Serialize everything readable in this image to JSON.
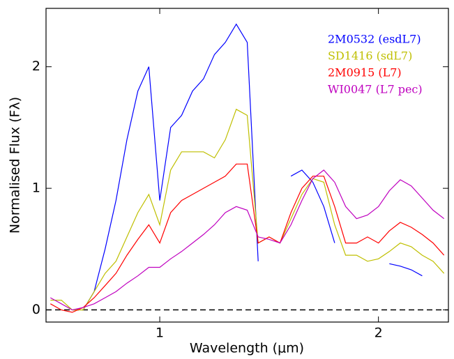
{
  "chart_data": {
    "type": "line",
    "x_label": "Wavelength (μm)",
    "y_label": "Normalised Flux (Fλ)",
    "x": [
      0.5,
      0.55,
      0.6,
      0.65,
      0.7,
      0.75,
      0.8,
      0.85,
      0.9,
      0.95,
      1.0,
      1.05,
      1.1,
      1.15,
      1.2,
      1.25,
      1.3,
      1.35,
      1.4,
      1.45,
      1.5,
      1.55,
      1.6,
      1.65,
      1.7,
      1.75,
      1.8,
      1.85,
      1.9,
      1.95,
      2.0,
      2.05,
      2.1,
      2.15,
      2.2,
      2.25,
      2.3
    ],
    "series": [
      {
        "name": "2M0532 (esdL7)",
        "color": "#0000ff",
        "values": [
          null,
          null,
          null,
          0.0,
          0.15,
          0.5,
          0.9,
          1.4,
          1.8,
          2.0,
          0.9,
          1.5,
          1.6,
          1.8,
          1.9,
          2.1,
          2.2,
          2.35,
          2.2,
          0.4,
          null,
          null,
          1.1,
          1.15,
          1.05,
          0.85,
          0.55,
          null,
          null,
          null,
          null,
          0.38,
          0.36,
          0.33,
          0.28,
          null,
          null
        ]
      },
      {
        "name": "SD1416 (sdL7)",
        "color": "#bfbf00",
        "values": [
          0.08,
          0.08,
          0.0,
          0.0,
          0.15,
          0.3,
          0.4,
          0.6,
          0.8,
          0.95,
          0.7,
          1.15,
          1.3,
          1.3,
          1.3,
          1.25,
          1.4,
          1.65,
          1.6,
          0.55,
          0.6,
          0.55,
          0.75,
          0.95,
          1.08,
          1.05,
          0.7,
          0.45,
          0.45,
          0.4,
          0.42,
          0.48,
          0.55,
          0.52,
          0.45,
          0.4,
          0.3
        ]
      },
      {
        "name": "2M0915 (L7)",
        "color": "#ff0000",
        "values": [
          0.05,
          0.0,
          -0.02,
          0.02,
          0.1,
          0.2,
          0.3,
          0.45,
          0.58,
          0.7,
          0.55,
          0.8,
          0.9,
          0.95,
          1.0,
          1.05,
          1.1,
          1.2,
          1.2,
          0.55,
          0.6,
          0.55,
          0.8,
          1.0,
          1.1,
          1.1,
          0.85,
          0.55,
          0.55,
          0.6,
          0.55,
          0.65,
          0.72,
          0.68,
          0.62,
          0.55,
          0.45
        ]
      },
      {
        "name": "WI0047 (L7 pec)",
        "color": "#bf00bf",
        "values": [
          0.1,
          0.05,
          0.0,
          0.02,
          0.05,
          0.1,
          0.15,
          0.22,
          0.28,
          0.35,
          0.35,
          0.42,
          0.48,
          0.55,
          0.62,
          0.7,
          0.8,
          0.85,
          0.82,
          0.6,
          0.58,
          0.55,
          0.7,
          0.9,
          1.08,
          1.15,
          1.05,
          0.85,
          0.75,
          0.78,
          0.85,
          0.98,
          1.07,
          1.02,
          0.92,
          0.82,
          0.75
        ]
      }
    ],
    "xlim": [
      0.48,
      2.32
    ],
    "xticks": [
      1,
      2
    ],
    "ylim": [
      -0.1,
      2.48
    ],
    "yticks": [
      0,
      1,
      2
    ],
    "reference_line": 0,
    "legend": "upper right"
  }
}
